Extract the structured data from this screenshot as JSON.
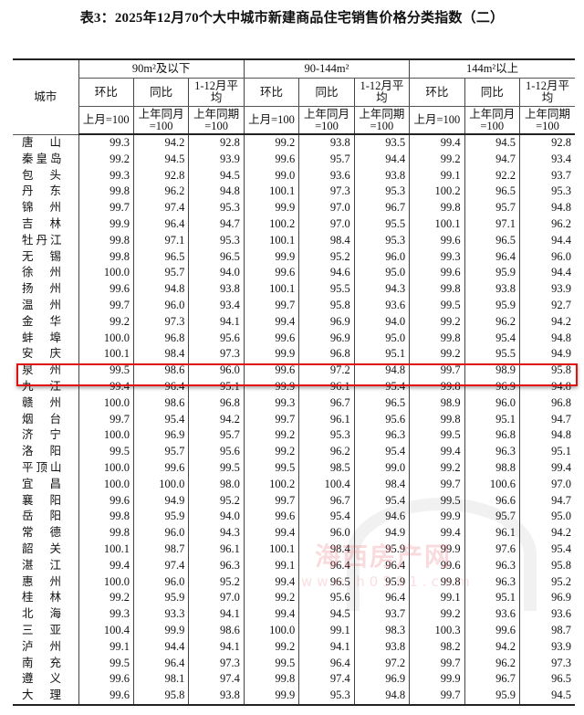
{
  "title": "表3：2025年12月70个大中城市新建商品住宅销售价格分类指数（二）",
  "header": {
    "city": "城市",
    "groups": [
      "90m²及以下",
      "90-144m²",
      "144m²以上"
    ],
    "sub": [
      "环比",
      "同比",
      "1-12月平均"
    ],
    "base": [
      "上月=100",
      "上年同月=100",
      "上年同期=100"
    ]
  },
  "highlight_row": "泉州",
  "watermark": {
    "name": "海西房产网",
    "url": "www.h0591.com"
  },
  "rows": [
    {
      "city": "唐山",
      "v": [
        "99.3",
        "94.2",
        "92.8",
        "99.2",
        "93.8",
        "93.5",
        "99.4",
        "94.5",
        "92.8"
      ]
    },
    {
      "city": "秦皇岛",
      "v": [
        "99.2",
        "94.5",
        "93.9",
        "99.6",
        "95.7",
        "94.4",
        "99.2",
        "94.7",
        "93.4"
      ]
    },
    {
      "city": "包头",
      "v": [
        "99.3",
        "92.8",
        "94.5",
        "99.0",
        "93.6",
        "93.8",
        "99.1",
        "92.2",
        "93.7"
      ]
    },
    {
      "city": "丹东",
      "v": [
        "99.8",
        "96.2",
        "94.8",
        "100.1",
        "97.3",
        "95.3",
        "100.2",
        "96.5",
        "95.3"
      ]
    },
    {
      "city": "锦州",
      "v": [
        "99.7",
        "97.4",
        "95.3",
        "99.9",
        "97.0",
        "96.7",
        "99.8",
        "95.7",
        "94.8"
      ]
    },
    {
      "city": "吉林",
      "v": [
        "99.9",
        "96.4",
        "94.7",
        "100.2",
        "97.0",
        "95.5",
        "100.1",
        "97.1",
        "96.2"
      ]
    },
    {
      "city": "牡丹江",
      "v": [
        "99.8",
        "97.1",
        "95.3",
        "100.1",
        "98.4",
        "95.3",
        "99.6",
        "96.5",
        "94.4"
      ]
    },
    {
      "city": "无锡",
      "v": [
        "99.8",
        "96.5",
        "96.5",
        "99.9",
        "95.2",
        "96.0",
        "99.3",
        "96.4",
        "96.0"
      ]
    },
    {
      "city": "徐州",
      "v": [
        "100.0",
        "95.7",
        "94.0",
        "99.6",
        "94.6",
        "95.0",
        "99.6",
        "95.9",
        "94.4"
      ]
    },
    {
      "city": "扬州",
      "v": [
        "99.6",
        "94.8",
        "93.8",
        "100.1",
        "95.5",
        "94.3",
        "99.8",
        "93.8",
        "93.9"
      ]
    },
    {
      "city": "温州",
      "v": [
        "99.7",
        "96.0",
        "93.4",
        "99.7",
        "95.8",
        "93.6",
        "99.5",
        "95.9",
        "92.7"
      ]
    },
    {
      "city": "金华",
      "v": [
        "99.2",
        "97.3",
        "94.1",
        "99.4",
        "96.9",
        "94.0",
        "99.2",
        "96.2",
        "94.2"
      ]
    },
    {
      "city": "蚌埠",
      "v": [
        "100.0",
        "96.8",
        "95.6",
        "99.6",
        "96.9",
        "95.0",
        "99.8",
        "95.4",
        "94.8"
      ]
    },
    {
      "city": "安庆",
      "v": [
        "100.1",
        "98.4",
        "97.3",
        "99.9",
        "96.8",
        "95.1",
        "99.2",
        "95.5",
        "94.9"
      ]
    },
    {
      "city": "泉州",
      "v": [
        "99.5",
        "98.6",
        "96.0",
        "99.6",
        "97.2",
        "94.8",
        "99.7",
        "98.9",
        "95.8"
      ]
    },
    {
      "city": "九江",
      "v": [
        "99.4",
        "96.4",
        "95.1",
        "99.9",
        "96.1",
        "95.4",
        "99.8",
        "96.9",
        "94.8"
      ]
    },
    {
      "city": "赣州",
      "v": [
        "100.0",
        "98.6",
        "96.8",
        "99.3",
        "96.7",
        "96.5",
        "98.9",
        "96.0",
        "96.8"
      ]
    },
    {
      "city": "烟台",
      "v": [
        "99.7",
        "95.4",
        "94.2",
        "99.7",
        "96.1",
        "95.6",
        "99.8",
        "95.1",
        "94.7"
      ]
    },
    {
      "city": "济宁",
      "v": [
        "100.0",
        "96.9",
        "95.7",
        "99.2",
        "95.3",
        "96.3",
        "99.5",
        "96.8",
        "94.8"
      ]
    },
    {
      "city": "洛阳",
      "v": [
        "99.5",
        "95.7",
        "95.6",
        "99.2",
        "96.2",
        "95.4",
        "99.4",
        "96.3",
        "95.1"
      ]
    },
    {
      "city": "平顶山",
      "v": [
        "100.0",
        "99.6",
        "99.5",
        "99.5",
        "98.5",
        "99.0",
        "99.2",
        "98.8",
        "99.4"
      ]
    },
    {
      "city": "宜昌",
      "v": [
        "100.0",
        "100.0",
        "98.0",
        "100.2",
        "100.4",
        "98.4",
        "99.7",
        "100.6",
        "97.0"
      ]
    },
    {
      "city": "襄阳",
      "v": [
        "99.6",
        "94.9",
        "95.2",
        "99.7",
        "96.7",
        "95.4",
        "99.5",
        "96.6",
        "94.7"
      ]
    },
    {
      "city": "岳阳",
      "v": [
        "99.8",
        "95.9",
        "94.0",
        "99.6",
        "95.4",
        "94.6",
        "99.9",
        "95.7",
        "95.0"
      ]
    },
    {
      "city": "常德",
      "v": [
        "99.8",
        "96.0",
        "94.3",
        "99.4",
        "96.0",
        "94.9",
        "99.4",
        "96.1",
        "94.2"
      ]
    },
    {
      "city": "韶关",
      "v": [
        "100.1",
        "98.7",
        "96.1",
        "100.1",
        "98.4",
        "95.9",
        "99.9",
        "97.6",
        "95.4"
      ]
    },
    {
      "city": "湛江",
      "v": [
        "99.4",
        "97.4",
        "96.3",
        "99.1",
        "96.4",
        "96.4",
        "99.6",
        "96.3",
        "95.8"
      ]
    },
    {
      "city": "惠州",
      "v": [
        "100.0",
        "96.0",
        "95.2",
        "99.4",
        "96.5",
        "95.9",
        "99.8",
        "96.3",
        "95.2"
      ]
    },
    {
      "city": "桂林",
      "v": [
        "99.2",
        "95.9",
        "97.0",
        "99.2",
        "95.6",
        "96.4",
        "99.1",
        "95.1",
        "96.9"
      ]
    },
    {
      "city": "北海",
      "v": [
        "99.3",
        "93.3",
        "94.1",
        "99.4",
        "94.5",
        "93.7",
        "99.2",
        "93.6",
        "93.6"
      ]
    },
    {
      "city": "三亚",
      "v": [
        "100.4",
        "99.9",
        "98.6",
        "100.0",
        "99.1",
        "98.3",
        "100.3",
        "99.6",
        "98.7"
      ]
    },
    {
      "city": "泸州",
      "v": [
        "99.1",
        "94.4",
        "94.1",
        "99.2",
        "94.1",
        "93.8",
        "98.2",
        "94.2",
        "93.9"
      ]
    },
    {
      "city": "南充",
      "v": [
        "99.5",
        "96.4",
        "97.3",
        "99.5",
        "96.4",
        "97.2",
        "99.7",
        "96.2",
        "97.3"
      ]
    },
    {
      "city": "遵义",
      "v": [
        "99.6",
        "98.1",
        "97.4",
        "99.8",
        "97.4",
        "96.9",
        "99.9",
        "96.7",
        "96.5"
      ]
    },
    {
      "city": "大理",
      "v": [
        "99.6",
        "95.8",
        "93.8",
        "99.9",
        "95.3",
        "94.8",
        "99.7",
        "95.9",
        "94.5"
      ]
    }
  ]
}
